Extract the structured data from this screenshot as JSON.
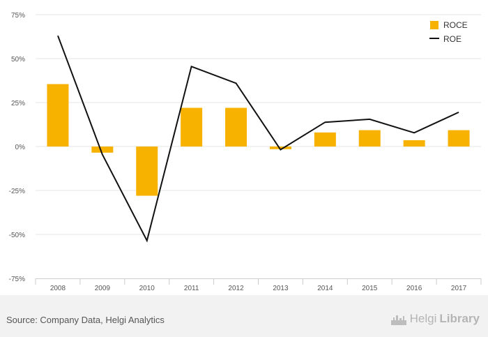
{
  "chart_data": {
    "type": "bar",
    "categories": [
      "2008",
      "2009",
      "2010",
      "2011",
      "2012",
      "2013",
      "2014",
      "2015",
      "2016",
      "2017"
    ],
    "series": [
      {
        "name": "ROCE",
        "type": "bar",
        "color": "#f7b200",
        "values": [
          35.5,
          -3.5,
          -28,
          22,
          22,
          -1.5,
          8,
          9.3,
          3.6,
          9.3
        ]
      },
      {
        "name": "ROE",
        "type": "line",
        "color": "#111111",
        "values": [
          63,
          -4.5,
          -53.5,
          45.5,
          36,
          -1.8,
          13.8,
          15.5,
          7.8,
          19.5
        ]
      }
    ],
    "ylim": [
      -75,
      75
    ],
    "yticks": [
      -75,
      -50,
      -25,
      0,
      25,
      50,
      75
    ],
    "ytick_labels": [
      "-75%",
      "-50%",
      "-25%",
      "0%",
      "25%",
      "50%",
      "75%"
    ],
    "grid": true,
    "legend_position": "top-right"
  },
  "footer": {
    "source": "Source: Company Data, Helgi Analytics",
    "brand_light": "Helgi",
    "brand_bold": "Library"
  }
}
